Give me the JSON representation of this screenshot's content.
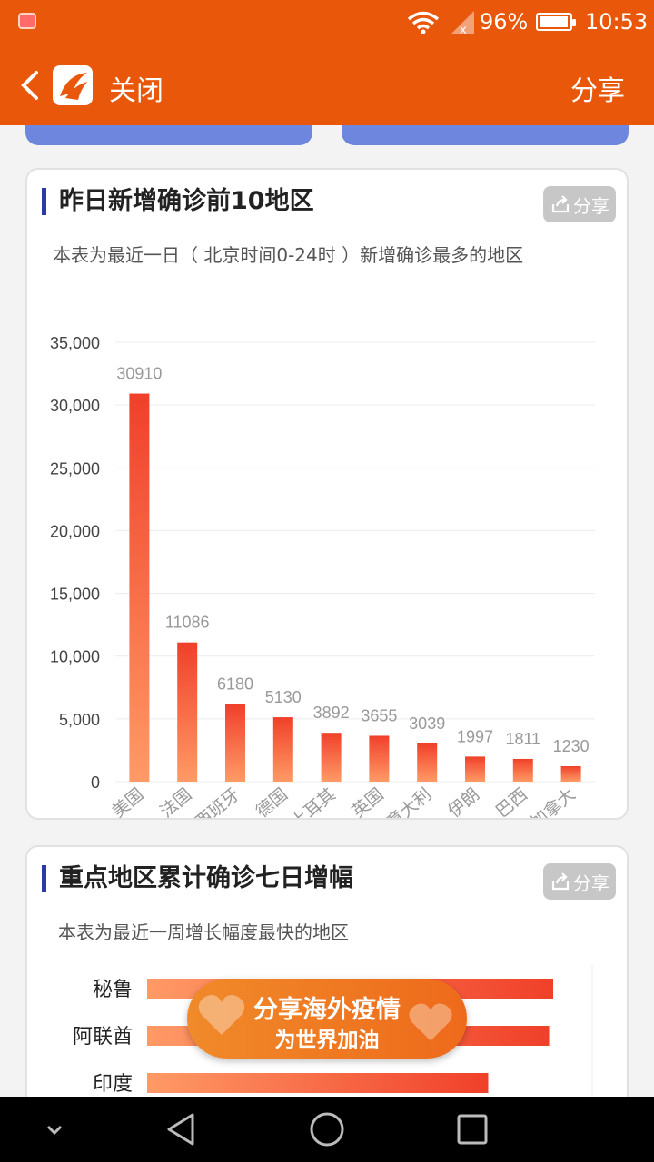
{
  "status_bar": {
    "battery": "96%",
    "time": "10:53"
  },
  "header": {
    "close_label": "关闭",
    "share_label": "分享"
  },
  "card1": {
    "title": "昨日新增确诊前10地区",
    "subtitle": "本表为最近一日（ 北京时间0-24时 ）新增确诊最多的地区",
    "share_chip": "分享"
  },
  "card2": {
    "title": "重点地区累计确诊七日增幅",
    "subtitle": "本表为最近一周增长幅度最快的地区",
    "share_chip": "分享"
  },
  "promo": {
    "line1": "分享海外疫情",
    "line2": "为世界加油"
  },
  "chart_data": [
    {
      "type": "bar",
      "categories": [
        "美国",
        "法国",
        "西班牙",
        "德国",
        "土耳其",
        "英国",
        "意大利",
        "伊朗",
        "巴西",
        "加拿大"
      ],
      "values": [
        30910,
        11086,
        6180,
        5130,
        3892,
        3655,
        3039,
        1997,
        1811,
        1230
      ],
      "ylim": [
        0,
        35000
      ],
      "yticks": [
        "0",
        "5,000",
        "10,000",
        "15,000",
        "20,000",
        "25,000",
        "30,000",
        "35,000"
      ],
      "ytick_values": [
        0,
        5000,
        10000,
        15000,
        20000,
        25000,
        30000,
        35000
      ],
      "grid": true,
      "colors": {
        "bar_top": "#f0402a",
        "bar_bottom": "#ff9a66",
        "label": "#999999"
      }
    },
    {
      "type": "bar",
      "orientation": "horizontal",
      "categories": [
        "秘鲁",
        "阿联酋",
        "印度"
      ],
      "values": [
        1.0,
        0.99,
        0.84
      ],
      "colors": {
        "bar_left": "#ff9a66",
        "bar_right": "#f0402a"
      }
    }
  ]
}
